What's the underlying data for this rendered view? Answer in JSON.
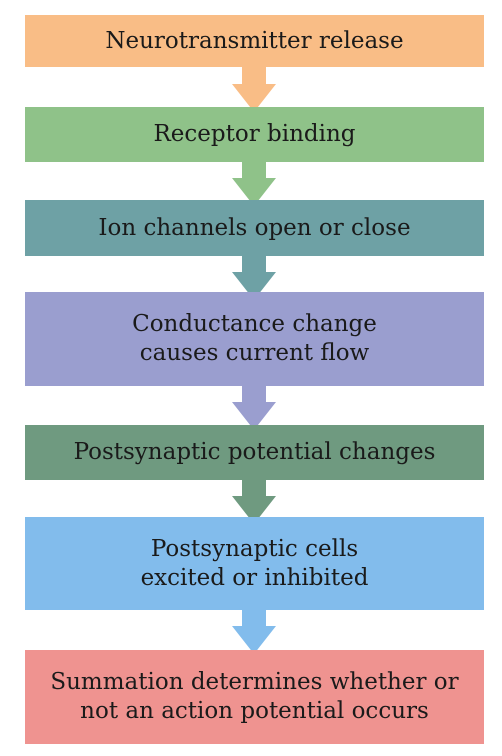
{
  "flowchart": {
    "steps": [
      {
        "label": "Neurotransmitter release",
        "color": "#f9bd86"
      },
      {
        "label": "Receptor binding",
        "color": "#8fc289"
      },
      {
        "label": "Ion channels open or close",
        "color": "#6ea1a5"
      },
      {
        "label": "Conductance change\ncauses current flow",
        "color": "#9a9ecf"
      },
      {
        "label": "Postsynaptic potential changes",
        "color": "#6f9a80"
      },
      {
        "label": "Postsynaptic cells\nexcited or inhibited",
        "color": "#82bcec"
      },
      {
        "label": "Summation determines whether or\nnot an action potential occurs",
        "color": "#ef9390"
      }
    ]
  }
}
